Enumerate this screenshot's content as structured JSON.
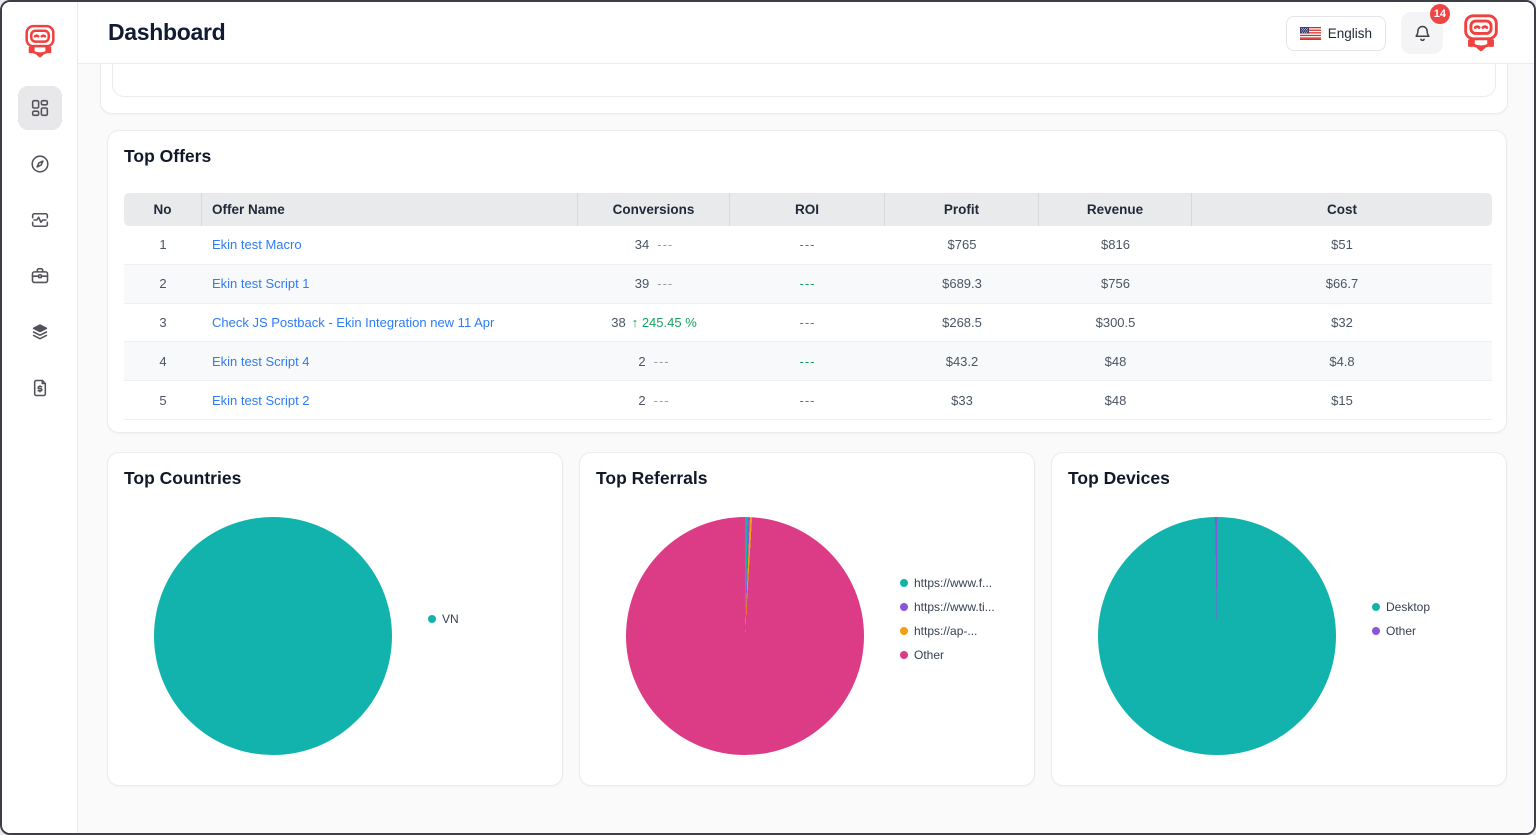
{
  "header": {
    "title": "Dashboard",
    "language_label": "English",
    "notification_count": "14"
  },
  "sidebar": {
    "items": [
      {
        "name": "dashboard",
        "icon": "dashboard-grid-icon",
        "active": true
      },
      {
        "name": "discover",
        "icon": "compass-icon",
        "active": false
      },
      {
        "name": "activity",
        "icon": "pulse-panel-icon",
        "active": false
      },
      {
        "name": "campaigns",
        "icon": "briefcase-icon",
        "active": false
      },
      {
        "name": "flows",
        "icon": "layers-icon",
        "active": false
      },
      {
        "name": "billing",
        "icon": "file-dollar-icon",
        "active": false
      }
    ]
  },
  "colors": {
    "accent_red": "#f0413e",
    "teal": "#12b3ad",
    "pink": "#dc3c86",
    "purple": "#8a55d7",
    "orange": "#f59f0e",
    "link_blue": "#2e7cf6",
    "green": "#18a15f"
  },
  "top_offers": {
    "title": "Top Offers",
    "columns": [
      "No",
      "Offer Name",
      "Conversions",
      "ROI",
      "Profit",
      "Revenue",
      "Cost"
    ],
    "rows": [
      {
        "no": "1",
        "offer_name": "Ekin test Macro",
        "conversions": "34",
        "change_type": "dashes",
        "change_text": "---",
        "roi": "---",
        "profit": "$765",
        "revenue": "$816",
        "cost": "$51"
      },
      {
        "no": "2",
        "offer_name": "Ekin test Script 1",
        "conversions": "39",
        "change_type": "dashes",
        "change_text": "---",
        "roi": "---",
        "profit": "$689.3",
        "revenue": "$756",
        "cost": "$66.7"
      },
      {
        "no": "3",
        "offer_name": "Check JS Postback - Ekin Integration new 11 Apr",
        "conversions": "38",
        "change_type": "up",
        "change_text": "↑ 245.45 %",
        "roi": "---",
        "profit": "$268.5",
        "revenue": "$300.5",
        "cost": "$32"
      },
      {
        "no": "4",
        "offer_name": "Ekin test Script 4",
        "conversions": "2",
        "change_type": "dashes",
        "change_text": "---",
        "roi": "---",
        "profit": "$43.2",
        "revenue": "$48",
        "cost": "$4.8"
      },
      {
        "no": "5",
        "offer_name": "Ekin test Script 2",
        "conversions": "2",
        "change_type": "dashes",
        "change_text": "---",
        "roi": "---",
        "profit": "$33",
        "revenue": "$48",
        "cost": "$15"
      }
    ]
  },
  "chart_data": [
    {
      "type": "pie",
      "title": "Top Countries",
      "labels": [
        "VN"
      ],
      "values": [
        100
      ],
      "colors": [
        "#12b3ad"
      ],
      "legend_position": "right"
    },
    {
      "type": "pie",
      "title": "Top Referrals",
      "labels": [
        "https://www.f...",
        "https://www.ti...",
        "https://ap-...",
        "Other"
      ],
      "values": [
        0.4,
        0.25,
        0.3,
        99.05
      ],
      "colors": [
        "#12b3ad",
        "#8a55d7",
        "#f59f0e",
        "#dc3c86"
      ],
      "legend_position": "right"
    },
    {
      "type": "pie",
      "title": "Top Devices",
      "labels": [
        "Desktop",
        "Other"
      ],
      "values": [
        99.75,
        0.25
      ],
      "colors": [
        "#12b3ad",
        "#8a55d7"
      ],
      "legend_position": "right"
    }
  ]
}
